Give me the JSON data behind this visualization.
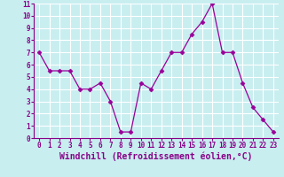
{
  "x": [
    0,
    1,
    2,
    3,
    4,
    5,
    6,
    7,
    8,
    9,
    10,
    11,
    12,
    13,
    14,
    15,
    16,
    17,
    18,
    19,
    20,
    21,
    22,
    23
  ],
  "y": [
    7,
    5.5,
    5.5,
    5.5,
    4,
    4,
    4.5,
    3,
    0.5,
    0.5,
    4.5,
    4,
    5.5,
    7,
    7,
    8.5,
    9.5,
    11,
    7,
    7,
    4.5,
    2.5,
    1.5,
    0.5
  ],
  "line_color": "#990099",
  "marker": "D",
  "marker_size": 2.5,
  "xlabel": "Windchill (Refroidissement éolien,°C)",
  "xlim": [
    -0.5,
    23.5
  ],
  "ylim": [
    0,
    11
  ],
  "xticks": [
    0,
    1,
    2,
    3,
    4,
    5,
    6,
    7,
    8,
    9,
    10,
    11,
    12,
    13,
    14,
    15,
    16,
    17,
    18,
    19,
    20,
    21,
    22,
    23
  ],
  "yticks": [
    0,
    1,
    2,
    3,
    4,
    5,
    6,
    7,
    8,
    9,
    10,
    11
  ],
  "bg_color": "#c8eef0",
  "grid_color": "#ffffff",
  "tick_label_fontsize": 5.5,
  "xlabel_fontsize": 7.0,
  "line_color_hex": "#880088"
}
